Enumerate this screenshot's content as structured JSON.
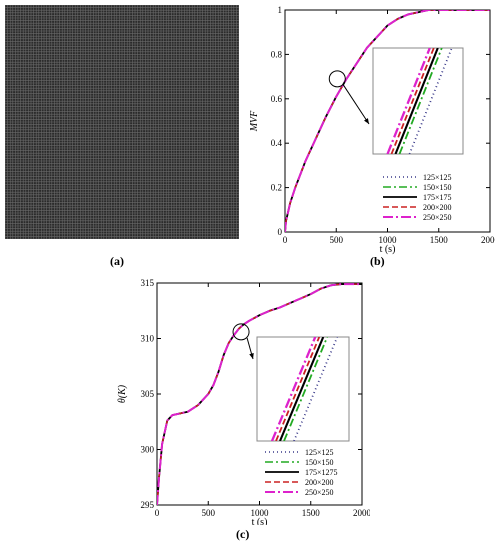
{
  "figure": {
    "labels": [
      "(a)",
      "(b)",
      "(c)"
    ]
  },
  "chart_data": [
    {
      "panel": "(a)",
      "type": "image",
      "description_color": "#2b2b2b",
      "mesh_color": "#6a6a6a"
    },
    {
      "panel": "(b)",
      "type": "line",
      "title": "",
      "xlabel": "t (s)",
      "ylabel": "MVF",
      "xlim": [
        0,
        2000
      ],
      "ylim": [
        0,
        1
      ],
      "xticks": [
        "0",
        "500",
        "1000",
        "1500",
        "2000"
      ],
      "yticks": [
        "0",
        "0.2",
        "0.4",
        "0.6",
        "0.8",
        "1"
      ],
      "legend_position": "bottom-right",
      "grid": false,
      "inset": true,
      "series": [
        {
          "name": "125×125",
          "color": "#3a3a8a",
          "dash": "1,3",
          "width": 1.5,
          "x": [
            0,
            10,
            50,
            100,
            150,
            200,
            300,
            400,
            500,
            600,
            700,
            800,
            900,
            1000,
            1100,
            1200,
            1300,
            1400,
            1500,
            1600,
            1800,
            2000
          ],
          "y": [
            0,
            0.05,
            0.13,
            0.2,
            0.26,
            0.32,
            0.42,
            0.52,
            0.61,
            0.69,
            0.76,
            0.83,
            0.88,
            0.93,
            0.96,
            0.98,
            0.99,
            1,
            1,
            1,
            1,
            1
          ]
        },
        {
          "name": "150×150",
          "color": "#22aa22",
          "dash": "8,3,2,3",
          "width": 1.5,
          "x": [
            0,
            10,
            50,
            100,
            150,
            200,
            300,
            400,
            500,
            600,
            700,
            800,
            900,
            1000,
            1100,
            1200,
            1300,
            1400,
            1500,
            1600,
            1800,
            2000
          ],
          "y": [
            0,
            0.05,
            0.13,
            0.2,
            0.26,
            0.32,
            0.42,
            0.52,
            0.61,
            0.69,
            0.76,
            0.83,
            0.88,
            0.93,
            0.96,
            0.98,
            0.99,
            1,
            1,
            1,
            1,
            1
          ]
        },
        {
          "name": "175×175",
          "color": "#000000",
          "dash": "",
          "width": 1.8,
          "x": [
            0,
            10,
            50,
            100,
            150,
            200,
            300,
            400,
            500,
            600,
            700,
            800,
            900,
            1000,
            1100,
            1200,
            1300,
            1400,
            1500,
            1600,
            1800,
            2000
          ],
          "y": [
            0,
            0.05,
            0.13,
            0.2,
            0.26,
            0.32,
            0.42,
            0.52,
            0.61,
            0.69,
            0.76,
            0.83,
            0.88,
            0.93,
            0.96,
            0.98,
            0.99,
            1,
            1,
            1,
            1,
            1
          ]
        },
        {
          "name": "200×200",
          "color": "#cc2222",
          "dash": "6,3",
          "width": 1.5,
          "x": [
            0,
            10,
            50,
            100,
            150,
            200,
            300,
            400,
            500,
            600,
            700,
            800,
            900,
            1000,
            1100,
            1200,
            1300,
            1400,
            1500,
            1600,
            1800,
            2000
          ],
          "y": [
            0,
            0.05,
            0.13,
            0.2,
            0.26,
            0.32,
            0.42,
            0.52,
            0.61,
            0.69,
            0.76,
            0.83,
            0.88,
            0.93,
            0.96,
            0.98,
            0.99,
            1,
            1,
            1,
            1,
            1
          ]
        },
        {
          "name": "250×250",
          "color": "#dd22cc",
          "dash": "10,3,2,3",
          "width": 2,
          "x": [
            0,
            10,
            50,
            100,
            150,
            200,
            300,
            400,
            500,
            600,
            700,
            800,
            900,
            1000,
            1100,
            1200,
            1300,
            1400,
            1500,
            1600,
            1800,
            2000
          ],
          "y": [
            0,
            0.05,
            0.13,
            0.2,
            0.26,
            0.32,
            0.42,
            0.52,
            0.61,
            0.69,
            0.76,
            0.83,
            0.88,
            0.93,
            0.96,
            0.98,
            0.99,
            1,
            1,
            1,
            1,
            1
          ]
        }
      ]
    },
    {
      "panel": "(c)",
      "type": "line",
      "title": "",
      "xlabel": "t (s)",
      "ylabel": "θ(K)",
      "xlim": [
        0,
        2000
      ],
      "ylim": [
        295,
        315
      ],
      "xticks": [
        "0",
        "500",
        "1000",
        "1500",
        "2000"
      ],
      "yticks": [
        "295",
        "300",
        "305",
        "310",
        "315"
      ],
      "legend_position": "bottom-right",
      "grid": false,
      "inset": true,
      "series": [
        {
          "name": "125×125",
          "color": "#3a3a8a",
          "dash": "1,3",
          "width": 1.5,
          "x": [
            0,
            20,
            50,
            100,
            150,
            200,
            250,
            300,
            400,
            500,
            550,
            600,
            650,
            700,
            750,
            800,
            850,
            900,
            1000,
            1100,
            1200,
            1300,
            1400,
            1500,
            1600,
            1700,
            1800,
            1900,
            2000
          ],
          "y": [
            295,
            297.5,
            300.5,
            302.6,
            303.1,
            303.2,
            303.3,
            303.4,
            304,
            305,
            305.8,
            307,
            308.5,
            309.6,
            310.3,
            310.9,
            311.3,
            311.6,
            312.1,
            312.5,
            312.8,
            313.2,
            313.6,
            314,
            314.5,
            314.8,
            314.9,
            314.9,
            314.9
          ]
        },
        {
          "name": "150×150",
          "color": "#22aa22",
          "dash": "8,3,2,3",
          "width": 1.5,
          "x": [
            0,
            20,
            50,
            100,
            150,
            200,
            250,
            300,
            400,
            500,
            550,
            600,
            650,
            700,
            750,
            800,
            850,
            900,
            1000,
            1100,
            1200,
            1300,
            1400,
            1500,
            1600,
            1700,
            1800,
            1900,
            2000
          ],
          "y": [
            295,
            297.5,
            300.5,
            302.6,
            303.1,
            303.2,
            303.3,
            303.4,
            304,
            305,
            305.8,
            307,
            308.5,
            309.6,
            310.3,
            310.9,
            311.3,
            311.6,
            312.1,
            312.5,
            312.8,
            313.2,
            313.6,
            314,
            314.5,
            314.8,
            314.9,
            314.9,
            314.9
          ]
        },
        {
          "name": "175×1275",
          "color": "#000000",
          "dash": "",
          "width": 1.8,
          "x": [
            0,
            20,
            50,
            100,
            150,
            200,
            250,
            300,
            400,
            500,
            550,
            600,
            650,
            700,
            750,
            800,
            850,
            900,
            1000,
            1100,
            1200,
            1300,
            1400,
            1500,
            1600,
            1700,
            1800,
            1900,
            2000
          ],
          "y": [
            295,
            297.5,
            300.5,
            302.6,
            303.1,
            303.2,
            303.3,
            303.4,
            304,
            305,
            305.8,
            307,
            308.5,
            309.6,
            310.3,
            310.9,
            311.3,
            311.6,
            312.1,
            312.5,
            312.8,
            313.2,
            313.6,
            314,
            314.5,
            314.8,
            314.9,
            314.9,
            314.9
          ]
        },
        {
          "name": "200×200",
          "color": "#cc2222",
          "dash": "6,3",
          "width": 1.5,
          "x": [
            0,
            20,
            50,
            100,
            150,
            200,
            250,
            300,
            400,
            500,
            550,
            600,
            650,
            700,
            750,
            800,
            850,
            900,
            1000,
            1100,
            1200,
            1300,
            1400,
            1500,
            1600,
            1700,
            1800,
            1900,
            2000
          ],
          "y": [
            295,
            297.5,
            300.5,
            302.6,
            303.1,
            303.2,
            303.3,
            303.4,
            304,
            305,
            305.8,
            307,
            308.5,
            309.6,
            310.3,
            310.9,
            311.3,
            311.6,
            312.1,
            312.5,
            312.8,
            313.2,
            313.6,
            314,
            314.5,
            314.8,
            314.9,
            314.9,
            314.9
          ]
        },
        {
          "name": "250×250",
          "color": "#dd22cc",
          "dash": "10,3,2,3",
          "width": 2,
          "x": [
            0,
            20,
            50,
            100,
            150,
            200,
            250,
            300,
            400,
            500,
            550,
            600,
            650,
            700,
            750,
            800,
            850,
            900,
            1000,
            1100,
            1200,
            1300,
            1400,
            1500,
            1600,
            1700,
            1800,
            1900,
            2000
          ],
          "y": [
            295,
            297.5,
            300.5,
            302.6,
            303.1,
            303.2,
            303.3,
            303.4,
            304,
            305,
            305.8,
            307,
            308.5,
            309.6,
            310.3,
            310.9,
            311.3,
            311.6,
            312.1,
            312.5,
            312.8,
            313.2,
            313.6,
            314,
            314.5,
            314.8,
            314.9,
            314.9,
            314.9
          ]
        }
      ]
    }
  ]
}
